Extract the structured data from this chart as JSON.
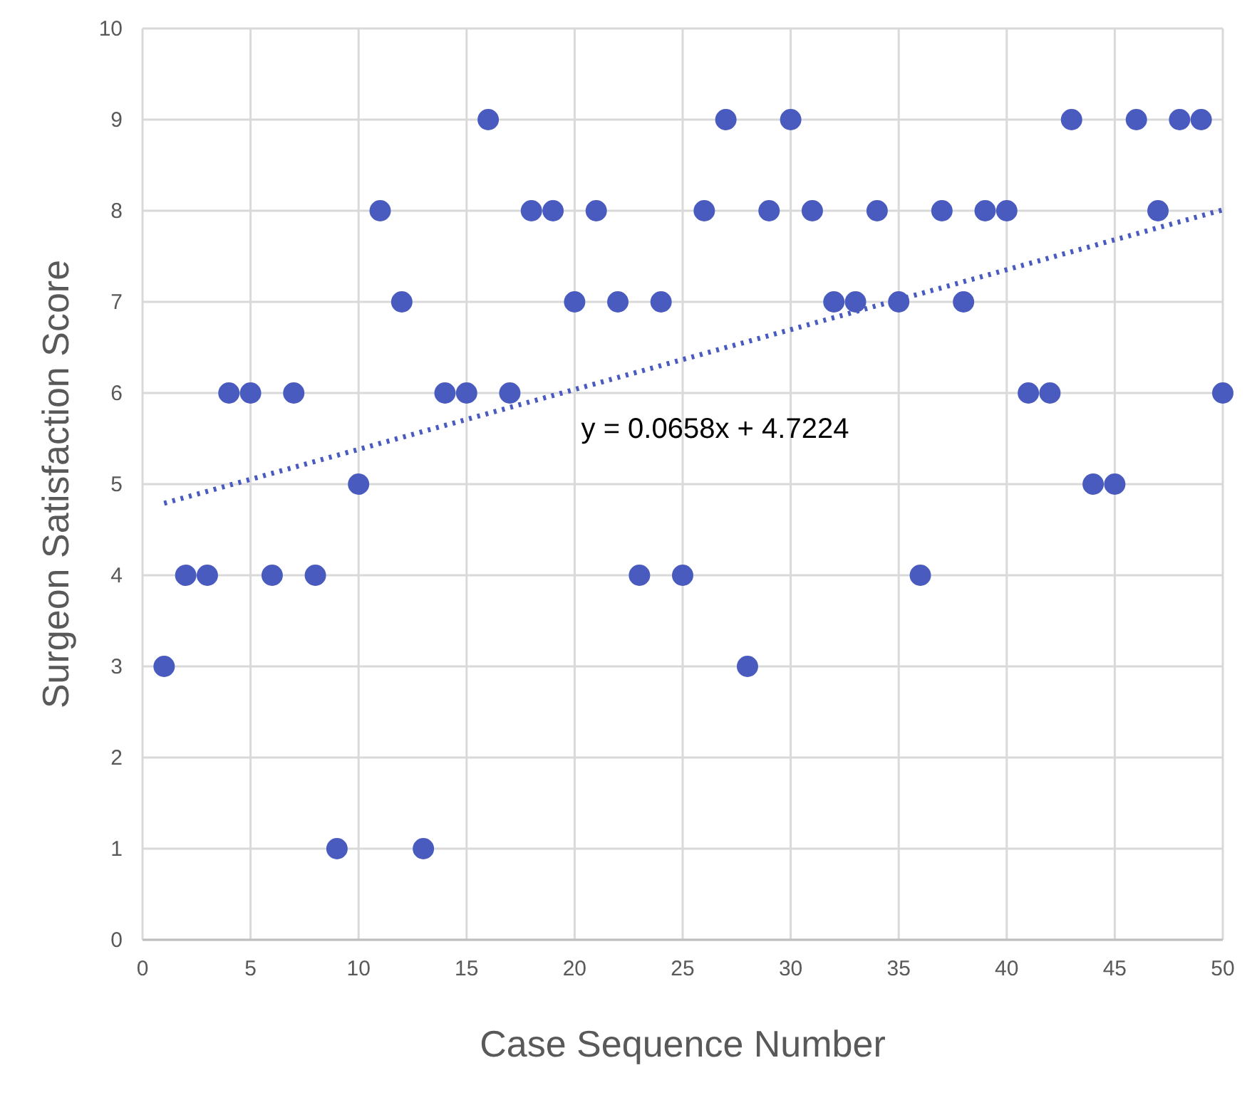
{
  "chart_data": {
    "type": "scatter",
    "xlabel": "Case Sequence Number",
    "ylabel": "Surgeon Satisfaction Score",
    "xlim": [
      0,
      50
    ],
    "xticks": [
      0,
      5,
      10,
      15,
      20,
      25,
      30,
      35,
      40,
      45,
      50
    ],
    "ylim": [
      0,
      10
    ],
    "yticks": [
      0,
      1,
      2,
      3,
      4,
      5,
      6,
      7,
      8,
      9,
      10
    ],
    "grid": true,
    "series": [
      {
        "color": "#4a5bbf",
        "marker": "circle",
        "x": [
          1,
          2,
          3,
          4,
          5,
          6,
          7,
          8,
          9,
          10,
          11,
          12,
          13,
          14,
          15,
          16,
          17,
          18,
          19,
          20,
          21,
          22,
          23,
          24,
          25,
          26,
          27,
          28,
          29,
          30,
          31,
          32,
          33,
          34,
          35,
          36,
          37,
          38,
          39,
          40,
          41,
          42,
          43,
          44,
          45,
          46,
          47,
          48,
          49,
          50
        ],
        "values": [
          3,
          4,
          4,
          6,
          6,
          4,
          6,
          4,
          1,
          5,
          8,
          7,
          1,
          6,
          6,
          9,
          6,
          8,
          8,
          7,
          8,
          7,
          4,
          7,
          4,
          8,
          9,
          3,
          8,
          9,
          8,
          7,
          7,
          8,
          7,
          4,
          8,
          7,
          8,
          8,
          6,
          6,
          9,
          5,
          5,
          9,
          8,
          9,
          9,
          6
        ]
      },
      {
        "type": "line",
        "color": "#4a5bbf",
        "line_style": "dotted",
        "x": [
          1,
          50
        ],
        "values": [
          4.79,
          8.01
        ]
      }
    ],
    "annotations": [
      "y = 0.0658x + 4.7224"
    ]
  }
}
